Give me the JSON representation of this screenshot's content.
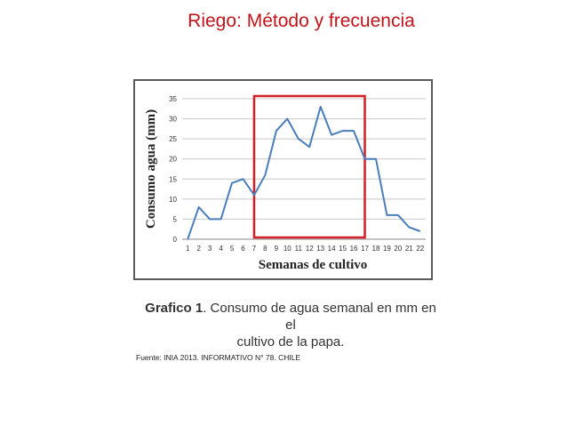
{
  "slide": {
    "title": "Riego: Método y frecuencia",
    "caption_bold": "Grafico 1",
    "caption_line1": ". Consumo de agua semanal en mm en el",
    "caption_line2": "cultivo de la papa.",
    "source": "Fuente: INIA 2013.   INFORMATIVO N° 78. CHILE"
  },
  "colors": {
    "title": "#c0141b",
    "line": "#4a7ebb",
    "highlight": "#d21f26",
    "grid": "#c8c8c8"
  },
  "chart_data": {
    "type": "line",
    "title": "",
    "xlabel": "Semanas de cultivo",
    "ylabel": "Consumo agua (mm)",
    "x": [
      1,
      2,
      3,
      4,
      5,
      6,
      7,
      8,
      9,
      10,
      11,
      12,
      13,
      14,
      15,
      16,
      17,
      18,
      19,
      20,
      21,
      22
    ],
    "series": [
      {
        "values": [
          0,
          8,
          5,
          5,
          14,
          15,
          11,
          16,
          27,
          30,
          25,
          23,
          33,
          26,
          27,
          27,
          20,
          20,
          6,
          6,
          3,
          2
        ]
      }
    ],
    "yticks": [
      0,
      5,
      10,
      15,
      20,
      25,
      30,
      35
    ],
    "ylim": [
      0,
      35
    ],
    "grid": true,
    "highlight_range": {
      "x_from": 7,
      "x_to": 17
    }
  }
}
